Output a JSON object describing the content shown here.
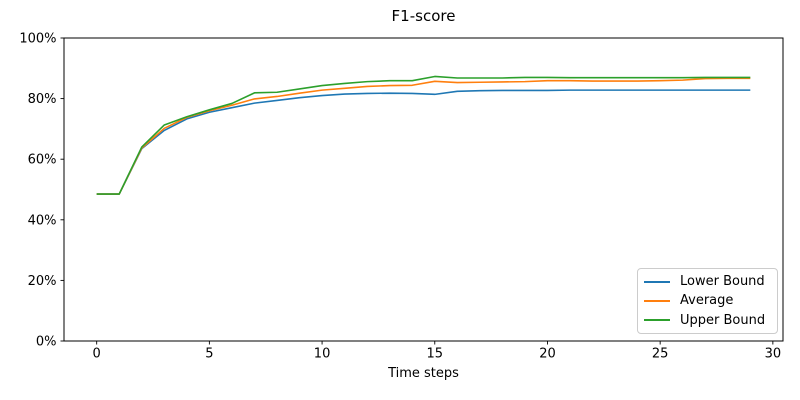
{
  "chart_data": {
    "type": "line",
    "title": "F1-score",
    "xlabel": "Time steps",
    "ylabel": "",
    "x": [
      0,
      1,
      2,
      3,
      4,
      5,
      6,
      7,
      8,
      9,
      10,
      11,
      12,
      13,
      14,
      15,
      16,
      17,
      18,
      19,
      20,
      21,
      22,
      23,
      24,
      25,
      26,
      27,
      28,
      29
    ],
    "series": [
      {
        "name": "Lower Bound",
        "color": "#1f77b4",
        "values": [
          48.5,
          48.5,
          63.5,
          69.5,
          73.3,
          75.5,
          77.0,
          78.5,
          79.4,
          80.3,
          81.0,
          81.5,
          81.7,
          81.8,
          81.7,
          81.4,
          82.4,
          82.6,
          82.7,
          82.7,
          82.7,
          82.8,
          82.8,
          82.8,
          82.8,
          82.8,
          82.8,
          82.8,
          82.8,
          82.8
        ]
      },
      {
        "name": "Average",
        "color": "#ff7f0e",
        "values": [
          48.5,
          48.5,
          63.7,
          70.2,
          73.8,
          76.0,
          77.8,
          79.9,
          80.7,
          81.8,
          82.8,
          83.4,
          84.0,
          84.3,
          84.4,
          85.7,
          85.3,
          85.4,
          85.5,
          85.6,
          85.9,
          85.9,
          85.8,
          85.8,
          85.8,
          85.9,
          86.1,
          86.6,
          86.7,
          86.7
        ]
      },
      {
        "name": "Upper Bound",
        "color": "#2ca02c",
        "values": [
          48.5,
          48.5,
          64.0,
          71.3,
          74.0,
          76.3,
          78.4,
          81.9,
          82.1,
          83.2,
          84.3,
          85.0,
          85.6,
          85.9,
          85.9,
          87.3,
          86.8,
          86.8,
          86.8,
          87.0,
          87.0,
          86.9,
          86.9,
          86.9,
          86.9,
          86.9,
          86.9,
          87.0,
          87.0,
          87.0
        ]
      }
    ],
    "xlim": [
      -1.45,
      30.45
    ],
    "ylim": [
      0,
      100
    ],
    "xticks": [
      0,
      5,
      10,
      15,
      20,
      25,
      30
    ],
    "xtick_labels": [
      "0",
      "5",
      "10",
      "15",
      "20",
      "25",
      "30"
    ],
    "yticks": [
      0,
      20,
      40,
      60,
      80,
      100
    ],
    "ytick_labels": [
      "0%",
      "20%",
      "40%",
      "60%",
      "80%",
      "100%"
    ],
    "grid": false,
    "legend_position": "lower right",
    "axis_color": "#000000",
    "background_color": "#ffffff"
  }
}
